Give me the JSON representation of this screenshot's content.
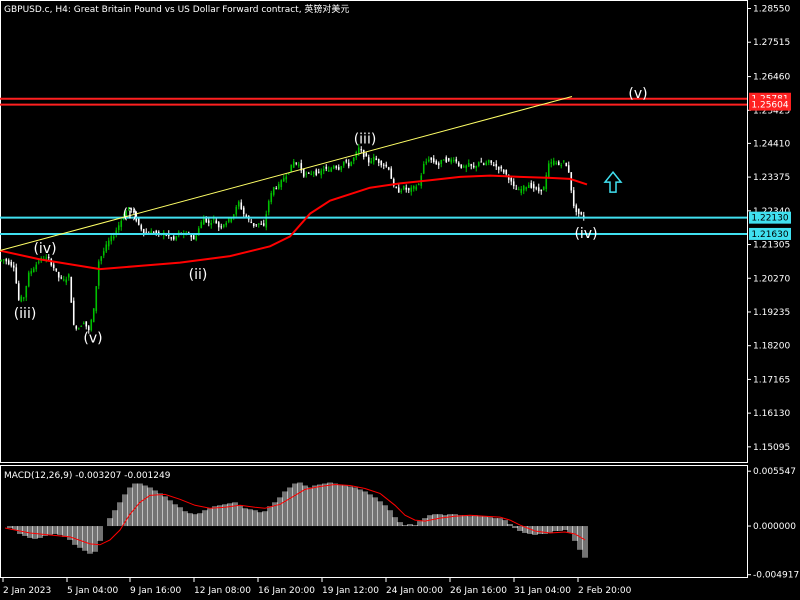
{
  "window": {
    "title": "GBPUSD.c, H4:  Great Britain Pound vs US Dollar Forward contract, 英镑对美元"
  },
  "colors": {
    "background": "#000000",
    "axis": "#ffffff",
    "bull_candle": "#00c000",
    "bear_candle": "#ffffff",
    "moving_average": "#ff0000",
    "trendline": "#ffff66",
    "resistance": "#ff2020",
    "support": "#40e0f0",
    "macd_hist": "#c0c0c0",
    "macd_signal": "#ff0000"
  },
  "chart_data": {
    "type": "candlestick",
    "symbol": "GBPUSD.c",
    "timeframe": "H4",
    "price_axis": {
      "ylim": [
        1.1463,
        1.2878
      ],
      "tick_labels": [
        "1.28550",
        "1.27515",
        "1.26460",
        "1.25425",
        "1.24410",
        "1.23375",
        "1.22340",
        "1.21305",
        "1.20270",
        "1.19235",
        "1.18200",
        "1.17165",
        "1.16130",
        "1.15095"
      ]
    },
    "time_axis": {
      "tick_labels": [
        "2 Jan 2023",
        "5 Jan 04:00",
        "9 Jan 16:00",
        "12 Jan 08:00",
        "16 Jan 20:00",
        "19 Jan 12:00",
        "24 Jan 00:00",
        "26 Jan 16:00",
        "31 Jan 04:00",
        "2 Feb 20:00"
      ]
    },
    "price_path": [
      [
        0,
        1.208
      ],
      [
        5,
        1.2085
      ],
      [
        10,
        1.2075
      ],
      [
        15,
        1.2065
      ],
      [
        20,
        1.196
      ],
      [
        25,
        1.197
      ],
      [
        30,
        1.204
      ],
      [
        35,
        1.206
      ],
      [
        40,
        1.208
      ],
      [
        45,
        1.209
      ],
      [
        50,
        1.2085
      ],
      [
        55,
        1.206
      ],
      [
        60,
        1.203
      ],
      [
        65,
        1.202
      ],
      [
        70,
        1.2035
      ],
      [
        75,
        1.188
      ],
      [
        80,
        1.1875
      ],
      [
        85,
        1.1895
      ],
      [
        90,
        1.1865
      ],
      [
        95,
        1.193
      ],
      [
        100,
        1.208
      ],
      [
        105,
        1.211
      ],
      [
        110,
        1.214
      ],
      [
        115,
        1.216
      ],
      [
        120,
        1.219
      ],
      [
        125,
        1.222
      ],
      [
        130,
        1.2245
      ],
      [
        135,
        1.2225
      ],
      [
        140,
        1.219
      ],
      [
        145,
        1.217
      ],
      [
        150,
        1.2165
      ],
      [
        155,
        1.217
      ],
      [
        160,
        1.216
      ],
      [
        165,
        1.2165
      ],
      [
        170,
        1.2155
      ],
      [
        175,
        1.2145
      ],
      [
        180,
        1.2165
      ],
      [
        185,
        1.216
      ],
      [
        190,
        1.2165
      ],
      [
        195,
        1.2145
      ],
      [
        200,
        1.218
      ],
      [
        205,
        1.2215
      ],
      [
        210,
        1.2195
      ],
      [
        215,
        1.221
      ],
      [
        220,
        1.2185
      ],
      [
        225,
        1.2195
      ],
      [
        230,
        1.2205
      ],
      [
        235,
        1.2225
      ],
      [
        240,
        1.226
      ],
      [
        245,
        1.2225
      ],
      [
        250,
        1.2205
      ],
      [
        255,
        1.219
      ],
      [
        260,
        1.2195
      ],
      [
        265,
        1.2185
      ],
      [
        270,
        1.2265
      ],
      [
        275,
        1.2305
      ],
      [
        280,
        1.231
      ],
      [
        285,
        1.2335
      ],
      [
        290,
        1.2355
      ],
      [
        295,
        1.2385
      ],
      [
        300,
        1.2375
      ],
      [
        305,
        1.2345
      ],
      [
        310,
        1.2345
      ],
      [
        315,
        1.2355
      ],
      [
        320,
        1.2345
      ],
      [
        325,
        1.2365
      ],
      [
        330,
        1.2355
      ],
      [
        335,
        1.2375
      ],
      [
        340,
        1.2365
      ],
      [
        345,
        1.2385
      ],
      [
        350,
        1.2375
      ],
      [
        355,
        1.2395
      ],
      [
        360,
        1.2425
      ],
      [
        365,
        1.2405
      ],
      [
        370,
        1.2385
      ],
      [
        375,
        1.2395
      ],
      [
        380,
        1.2385
      ],
      [
        385,
        1.2375
      ],
      [
        390,
        1.2365
      ],
      [
        395,
        1.2305
      ],
      [
        400,
        1.2295
      ],
      [
        405,
        1.2305
      ],
      [
        410,
        1.2295
      ],
      [
        415,
        1.2305
      ],
      [
        420,
        1.2315
      ],
      [
        425,
        1.2375
      ],
      [
        430,
        1.2395
      ],
      [
        435,
        1.2385
      ],
      [
        440,
        1.2375
      ],
      [
        445,
        1.2395
      ],
      [
        450,
        1.2385
      ],
      [
        455,
        1.2395
      ],
      [
        460,
        1.2375
      ],
      [
        465,
        1.2365
      ],
      [
        470,
        1.2375
      ],
      [
        475,
        1.2365
      ],
      [
        480,
        1.2385
      ],
      [
        485,
        1.2375
      ],
      [
        490,
        1.2385
      ],
      [
        495,
        1.2375
      ],
      [
        500,
        1.2365
      ],
      [
        505,
        1.2355
      ],
      [
        510,
        1.2335
      ],
      [
        515,
        1.2305
      ],
      [
        520,
        1.2295
      ],
      [
        525,
        1.2305
      ],
      [
        530,
        1.2315
      ],
      [
        535,
        1.2305
      ],
      [
        540,
        1.2295
      ],
      [
        545,
        1.2305
      ],
      [
        550,
        1.2375
      ],
      [
        555,
        1.2385
      ],
      [
        560,
        1.2375
      ],
      [
        565,
        1.2385
      ],
      [
        570,
        1.2355
      ],
      [
        575,
        1.2245
      ],
      [
        580,
        1.2225
      ],
      [
        585,
        1.2215
      ]
    ],
    "moving_average": [
      [
        0,
        1.2112
      ],
      [
        40,
        1.2085
      ],
      [
        80,
        1.2065
      ],
      [
        100,
        1.2055
      ],
      [
        140,
        1.2065
      ],
      [
        180,
        1.2075
      ],
      [
        230,
        1.2095
      ],
      [
        270,
        1.2125
      ],
      [
        290,
        1.2155
      ],
      [
        310,
        1.2225
      ],
      [
        330,
        1.2265
      ],
      [
        350,
        1.2285
      ],
      [
        370,
        1.2305
      ],
      [
        400,
        1.2318
      ],
      [
        430,
        1.2328
      ],
      [
        460,
        1.2338
      ],
      [
        490,
        1.2342
      ],
      [
        520,
        1.2338
      ],
      [
        550,
        1.2335
      ],
      [
        570,
        1.2332
      ],
      [
        587,
        1.2315
      ]
    ],
    "trendline": {
      "from": [
        0,
        1.2112
      ],
      "to": [
        572,
        1.2585
      ]
    },
    "horizontal_levels": [
      {
        "kind": "resistance",
        "price": 1.2578,
        "label": "1.25781"
      },
      {
        "kind": "resistance",
        "price": 1.256,
        "label": "1.25604"
      },
      {
        "kind": "support",
        "price": 1.2213,
        "label": "1.22130"
      },
      {
        "kind": "support",
        "price": 1.2163,
        "label": "1.21630"
      }
    ],
    "wave_labels": [
      {
        "text": "(iii)",
        "x": 25,
        "price": 1.1905
      },
      {
        "text": "(iv)",
        "x": 45,
        "price": 1.2105
      },
      {
        "text": "(v)",
        "x": 93,
        "price": 1.183
      },
      {
        "text": "(i)",
        "x": 130,
        "price": 1.221
      },
      {
        "text": "(ii)",
        "x": 198,
        "price": 1.2025
      },
      {
        "text": "(iii)",
        "x": 365,
        "price": 1.244
      },
      {
        "text": "(iv)",
        "x": 586,
        "price": 1.215
      },
      {
        "text": "(v)",
        "x": 638,
        "price": 1.258
      }
    ],
    "arrow": {
      "direction": "up",
      "x": 613,
      "price": 1.2322
    },
    "macd": {
      "name": "MACD(12,26,9) -0.003207 -0.001249",
      "params": [
        12,
        26,
        9
      ],
      "main": -0.003207,
      "signal": -0.001249,
      "ylim": [
        -0.00515,
        0.00607
      ],
      "tick_labels": [
        "0.005547",
        "0.000000",
        "-0.004917"
      ],
      "histogram": [
        [
          5,
          0.0
        ],
        [
          10,
          -0.0002
        ],
        [
          15,
          -0.0004
        ],
        [
          20,
          -0.0008
        ],
        [
          25,
          -0.001
        ],
        [
          30,
          -0.0012
        ],
        [
          35,
          -0.0013
        ],
        [
          40,
          -0.0012
        ],
        [
          45,
          -0.001
        ],
        [
          50,
          -0.0009
        ],
        [
          55,
          -0.0008
        ],
        [
          60,
          -0.0009
        ],
        [
          65,
          -0.0011
        ],
        [
          70,
          -0.0014
        ],
        [
          75,
          -0.0019
        ],
        [
          80,
          -0.0022
        ],
        [
          85,
          -0.0025
        ],
        [
          90,
          -0.0028
        ],
        [
          95,
          -0.0026
        ],
        [
          100,
          -0.0015
        ],
        [
          105,
          0.0
        ],
        [
          110,
          0.0008
        ],
        [
          115,
          0.0016
        ],
        [
          120,
          0.0024
        ],
        [
          125,
          0.0032
        ],
        [
          130,
          0.0039
        ],
        [
          135,
          0.0043
        ],
        [
          140,
          0.0043
        ],
        [
          145,
          0.0041
        ],
        [
          150,
          0.0039
        ],
        [
          155,
          0.0036
        ],
        [
          160,
          0.0033
        ],
        [
          165,
          0.003
        ],
        [
          170,
          0.0026
        ],
        [
          175,
          0.0022
        ],
        [
          180,
          0.0019
        ],
        [
          185,
          0.0015
        ],
        [
          190,
          0.0013
        ],
        [
          195,
          0.0012
        ],
        [
          200,
          0.0013
        ],
        [
          205,
          0.0016
        ],
        [
          210,
          0.0018
        ],
        [
          215,
          0.002
        ],
        [
          220,
          0.0021
        ],
        [
          225,
          0.0022
        ],
        [
          230,
          0.0023
        ],
        [
          235,
          0.0024
        ],
        [
          240,
          0.0021
        ],
        [
          245,
          0.0018
        ],
        [
          250,
          0.0017
        ],
        [
          255,
          0.0016
        ],
        [
          260,
          0.0014
        ],
        [
          265,
          0.0015
        ],
        [
          270,
          0.002
        ],
        [
          275,
          0.0024
        ],
        [
          280,
          0.0029
        ],
        [
          285,
          0.0035
        ],
        [
          290,
          0.0039
        ],
        [
          295,
          0.0043
        ],
        [
          300,
          0.0044
        ],
        [
          305,
          0.0041
        ],
        [
          310,
          0.0039
        ],
        [
          315,
          0.0041
        ],
        [
          320,
          0.0042
        ],
        [
          325,
          0.0043
        ],
        [
          330,
          0.0044
        ],
        [
          335,
          0.0043
        ],
        [
          340,
          0.0042
        ],
        [
          345,
          0.0041
        ],
        [
          350,
          0.004
        ],
        [
          355,
          0.0039
        ],
        [
          360,
          0.0037
        ],
        [
          365,
          0.0035
        ],
        [
          370,
          0.0032
        ],
        [
          375,
          0.0029
        ],
        [
          380,
          0.0025
        ],
        [
          385,
          0.0021
        ],
        [
          390,
          0.0016
        ],
        [
          395,
          0.0009
        ],
        [
          400,
          0.0004
        ],
        [
          405,
          0.0001
        ],
        [
          410,
          0.0002
        ],
        [
          415,
          0.0001
        ],
        [
          420,
          0.0005
        ],
        [
          425,
          0.0008
        ],
        [
          430,
          0.0011
        ],
        [
          435,
          0.0012
        ],
        [
          440,
          0.0012
        ],
        [
          445,
          0.0011
        ],
        [
          450,
          0.0012
        ],
        [
          455,
          0.0012
        ],
        [
          460,
          0.0011
        ],
        [
          465,
          0.0011
        ],
        [
          470,
          0.001
        ],
        [
          475,
          0.0011
        ],
        [
          480,
          0.001
        ],
        [
          485,
          0.001
        ],
        [
          490,
          0.0009
        ],
        [
          495,
          0.0008
        ],
        [
          500,
          0.0008
        ],
        [
          505,
          0.0006
        ],
        [
          510,
          0.0002
        ],
        [
          515,
          -0.0002
        ],
        [
          520,
          -0.0005
        ],
        [
          525,
          -0.0007
        ],
        [
          530,
          -0.0008
        ],
        [
          535,
          -0.0009
        ],
        [
          540,
          -0.0008
        ],
        [
          545,
          -0.0008
        ],
        [
          550,
          -0.0007
        ],
        [
          555,
          -0.0005
        ],
        [
          560,
          -0.0005
        ],
        [
          565,
          -0.0004
        ],
        [
          570,
          -0.0007
        ],
        [
          575,
          -0.0015
        ],
        [
          580,
          -0.0024
        ],
        [
          585,
          -0.0032
        ]
      ],
      "signal_line": [
        [
          5,
          -0.0002
        ],
        [
          30,
          -0.0007
        ],
        [
          50,
          -0.0009
        ],
        [
          70,
          -0.0011
        ],
        [
          90,
          -0.0018
        ],
        [
          100,
          -0.0019
        ],
        [
          110,
          -0.0014
        ],
        [
          120,
          -0.0004
        ],
        [
          130,
          0.0012
        ],
        [
          140,
          0.0024
        ],
        [
          150,
          0.0031
        ],
        [
          165,
          0.0032
        ],
        [
          180,
          0.0027
        ],
        [
          195,
          0.0021
        ],
        [
          210,
          0.0018
        ],
        [
          225,
          0.0019
        ],
        [
          240,
          0.0021
        ],
        [
          255,
          0.0019
        ],
        [
          265,
          0.0018
        ],
        [
          280,
          0.0022
        ],
        [
          295,
          0.0031
        ],
        [
          305,
          0.0037
        ],
        [
          320,
          0.004
        ],
        [
          335,
          0.0042
        ],
        [
          350,
          0.0041
        ],
        [
          365,
          0.0038
        ],
        [
          380,
          0.0033
        ],
        [
          395,
          0.0021
        ],
        [
          405,
          0.0011
        ],
        [
          415,
          0.0006
        ],
        [
          425,
          0.0005
        ],
        [
          440,
          0.0008
        ],
        [
          455,
          0.001
        ],
        [
          470,
          0.0011
        ],
        [
          485,
          0.001
        ],
        [
          500,
          0.0009
        ],
        [
          510,
          0.0006
        ],
        [
          520,
          0.0001
        ],
        [
          535,
          -0.0005
        ],
        [
          550,
          -0.0007
        ],
        [
          565,
          -0.0006
        ],
        [
          575,
          -0.0008
        ],
        [
          585,
          -0.0014
        ]
      ]
    }
  }
}
